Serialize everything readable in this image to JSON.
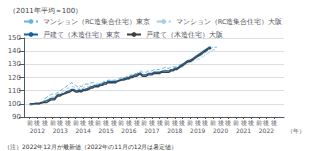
{
  "chart_data": {
    "type": "line",
    "title": "（2011年平均＝100）",
    "note": "（注）2022年12月が最新値（2022年の11月の12月は暑定値）",
    "xlabel": "（年）",
    "x": [
      2012,
      2012.083333,
      2012.166667,
      2012.25,
      2012.333333,
      2012.416667,
      2012.5,
      2012.583333,
      2012.666667,
      2012.75,
      2012.833333,
      2012.916667,
      2013,
      2013.083333,
      2013.166667,
      2013.25,
      2013.333333,
      2013.416667,
      2013.5,
      2013.583333,
      2013.666667,
      2013.75,
      2013.833333,
      2013.916667,
      2014,
      2014.083333,
      2014.166667,
      2014.25,
      2014.333333,
      2014.416667,
      2014.5,
      2014.583333,
      2014.666667,
      2014.75,
      2014.833333,
      2014.916667,
      2015,
      2015.083333,
      2015.166667,
      2015.25,
      2015.333333,
      2015.416667,
      2015.5,
      2015.583333,
      2015.666667,
      2015.75,
      2015.833333,
      2015.916667,
      2016,
      2016.083333,
      2016.166667,
      2016.25,
      2016.333333,
      2016.416667,
      2016.5,
      2016.583333,
      2016.666667,
      2016.75,
      2016.833333,
      2016.916667,
      2017,
      2017.083333,
      2017.166667,
      2017.25,
      2017.333333,
      2017.416667,
      2017.5,
      2017.583333,
      2017.666667,
      2017.75,
      2017.833333,
      2017.916667,
      2018,
      2018.083333,
      2018.166667,
      2018.25,
      2018.333333,
      2018.416667,
      2018.5,
      2018.583333,
      2018.666667,
      2018.75,
      2018.833333,
      2018.916667,
      2019,
      2019.083333,
      2019.166667,
      2019.25,
      2019.333333,
      2019.416667,
      2019.5,
      2019.583333,
      2019.666667,
      2019.75,
      2019.833333,
      2019.916667,
      2020,
      2020.083333,
      2020.166667
    ],
    "xlim": [
      2011.75,
      2023.1
    ],
    "xticks": [
      {
        "value": 2012,
        "label": "前"
      },
      {
        "value": 2012.333333,
        "label": "後"
      },
      {
        "value": 2012.666667,
        "label": "後"
      },
      {
        "value": 2013,
        "label": "前"
      },
      {
        "value": 2013.333333,
        "label": "後"
      },
      {
        "value": 2013.666667,
        "label": "後"
      },
      {
        "value": 2014,
        "label": "前"
      },
      {
        "value": 2014.333333,
        "label": "後"
      },
      {
        "value": 2014.666667,
        "label": "後"
      },
      {
        "value": 2015,
        "label": "前"
      },
      {
        "value": 2015.333333,
        "label": "後"
      },
      {
        "value": 2015.666667,
        "label": "後"
      },
      {
        "value": 2016,
        "label": "前"
      },
      {
        "value": 2016.333333,
        "label": "後"
      },
      {
        "value": 2016.666667,
        "label": "後"
      },
      {
        "value": 2017,
        "label": "前"
      },
      {
        "value": 2017.333333,
        "label": "後"
      },
      {
        "value": 2017.666667,
        "label": "後"
      },
      {
        "value": 2018,
        "label": "前"
      },
      {
        "value": 2018.333333,
        "label": "後"
      },
      {
        "value": 2018.666667,
        "label": "後"
      },
      {
        "value": 2019,
        "label": "前"
      },
      {
        "value": 2019.333333,
        "label": "後"
      },
      {
        "value": 2019.666667,
        "label": "後"
      },
      {
        "value": 2020,
        "label": "前"
      },
      {
        "value": 2020.333333,
        "label": "後"
      },
      {
        "value": 2020.666667,
        "label": "後"
      },
      {
        "value": 2021,
        "label": "前"
      },
      {
        "value": 2021.333333,
        "label": "後"
      },
      {
        "value": 2021.666667,
        "label": "後"
      },
      {
        "value": 2022,
        "label": "前"
      },
      {
        "value": 2022.333333,
        "label": "後"
      },
      {
        "value": 2022.666667,
        "label": "後"
      }
    ],
    "annotations": [
      {
        "text": "2012",
        "x": 2012.333333
      },
      {
        "text": "2013",
        "x": 2013.333333
      },
      {
        "text": "2014",
        "x": 2014.333333
      },
      {
        "text": "2015",
        "x": 2015.333333
      },
      {
        "text": "2016",
        "x": 2016.333333
      },
      {
        "text": "2017",
        "x": 2017.333333
      },
      {
        "text": "2018",
        "x": 2018.333333
      },
      {
        "text": "2019",
        "x": 2019.333333
      },
      {
        "text": "2020",
        "x": 2020.333333
      },
      {
        "text": "2021",
        "x": 2021.333333
      },
      {
        "text": "2022",
        "x": 2022.333333
      }
    ],
    "ylim": [
      90,
      150
    ],
    "yticks": [
      90,
      100,
      110,
      120,
      130,
      140,
      150
    ],
    "grid": true,
    "legend": "upper left",
    "series": [
      {
        "name": "マンション（RC造集合住宅）東京",
        "color": "#6ab4d8",
        "line_style": "dashed",
        "values": [
          99,
          99.5,
          100,
          100.5,
          100,
          99.5,
          101,
          102,
          104,
          105,
          106,
          107,
          107.5,
          107,
          108,
          109,
          110,
          111,
          112,
          113,
          114,
          115,
          116,
          115,
          114,
          113,
          114,
          113,
          114,
          115,
          115,
          115,
          116,
          116,
          116,
          115,
          115,
          116,
          116,
          117,
          117,
          118,
          118,
          118,
          118,
          118,
          119,
          119,
          120,
          120,
          120,
          121,
          121,
          122,
          122,
          123,
          123,
          124,
          125,
          124,
          124,
          124,
          125,
          125,
          125,
          126,
          126,
          126,
          126,
          127,
          127,
          128,
          127,
          127,
          128,
          128,
          128,
          128,
          129,
          130,
          130,
          131,
          132,
          132,
          133,
          134,
          135,
          135,
          136,
          136,
          137,
          138,
          139,
          140,
          141,
          142,
          143,
          143,
          143
        ]
      },
      {
        "name": "マンション（RC造集合住宅）大阪",
        "color": "#a8cce0",
        "line_style": "dashed",
        "values": [
          99,
          99,
          99.5,
          100,
          100,
          100.5,
          101,
          101.5,
          103,
          103,
          104,
          105,
          105.5,
          105,
          107,
          108,
          108,
          109,
          110,
          111,
          112,
          112,
          113,
          113,
          112,
          111,
          112,
          111,
          112,
          113,
          113,
          113,
          114,
          114,
          114,
          113,
          113,
          114,
          114,
          115,
          115,
          116,
          116,
          116,
          116,
          116,
          117,
          117,
          118,
          118,
          118,
          119,
          119,
          120,
          120,
          121,
          121,
          122,
          123,
          122,
          122,
          122,
          123,
          123,
          123,
          124,
          124,
          124,
          124,
          125,
          125,
          126,
          125,
          125,
          126,
          126,
          126,
          126,
          127,
          128,
          128,
          129,
          130,
          130,
          131,
          132,
          133,
          133,
          134,
          134,
          135,
          136,
          137,
          138,
          139,
          140,
          141,
          141,
          141
        ]
      },
      {
        "name": "戸建て（木造住宅）東京",
        "color": "#1a5fa0",
        "line_style": "solid",
        "values": [
          100,
          100,
          100,
          100.5,
          100.5,
          100.5,
          101,
          101,
          102,
          102.5,
          103,
          104,
          104,
          104,
          106,
          107,
          107,
          107.5,
          108,
          109,
          109.5,
          110,
          111,
          111,
          110,
          110,
          110.5,
          110,
          111,
          111,
          111.5,
          112,
          113,
          113,
          114,
          114,
          114,
          115,
          115,
          116,
          116,
          117,
          117,
          117,
          117,
          117,
          117.5,
          118,
          118.5,
          119,
          119,
          120,
          120,
          121,
          121,
          122,
          122,
          123,
          123.5,
          122,
          122,
          122,
          123,
          123,
          123,
          124,
          124,
          124,
          124,
          124.5,
          125,
          125,
          125,
          125,
          126,
          126,
          127,
          127,
          128,
          129,
          130,
          131,
          132,
          133,
          133,
          134,
          135,
          136,
          137,
          138,
          139,
          140,
          141,
          142,
          143,
          143,
          null,
          null,
          null
        ]
      },
      {
        "name": "戸建て（木造住宅）大阪",
        "color": "#404040",
        "line_style": "solid",
        "values": [
          100,
          100,
          100,
          100,
          100,
          100,
          100.5,
          101,
          101,
          101,
          102,
          103,
          103,
          103,
          105,
          106,
          106,
          107,
          107.5,
          108,
          108.5,
          109,
          110,
          110,
          109,
          109,
          109.5,
          109,
          110,
          110,
          110.5,
          111,
          112,
          112,
          113,
          113,
          113,
          114,
          114,
          115,
          115,
          116,
          116,
          116,
          116,
          116,
          117,
          117.5,
          118,
          118,
          118.5,
          119,
          119,
          120,
          120,
          121,
          121,
          122,
          122.5,
          121,
          121,
          121,
          122,
          122,
          122,
          123,
          123,
          123,
          123,
          124,
          124,
          124,
          124,
          124,
          125,
          125,
          126,
          126,
          127,
          128,
          129,
          130,
          131,
          132,
          132,
          133,
          134,
          135,
          136,
          137,
          138,
          139,
          140,
          141,
          142,
          142,
          null,
          null,
          null
        ]
      }
    ]
  }
}
